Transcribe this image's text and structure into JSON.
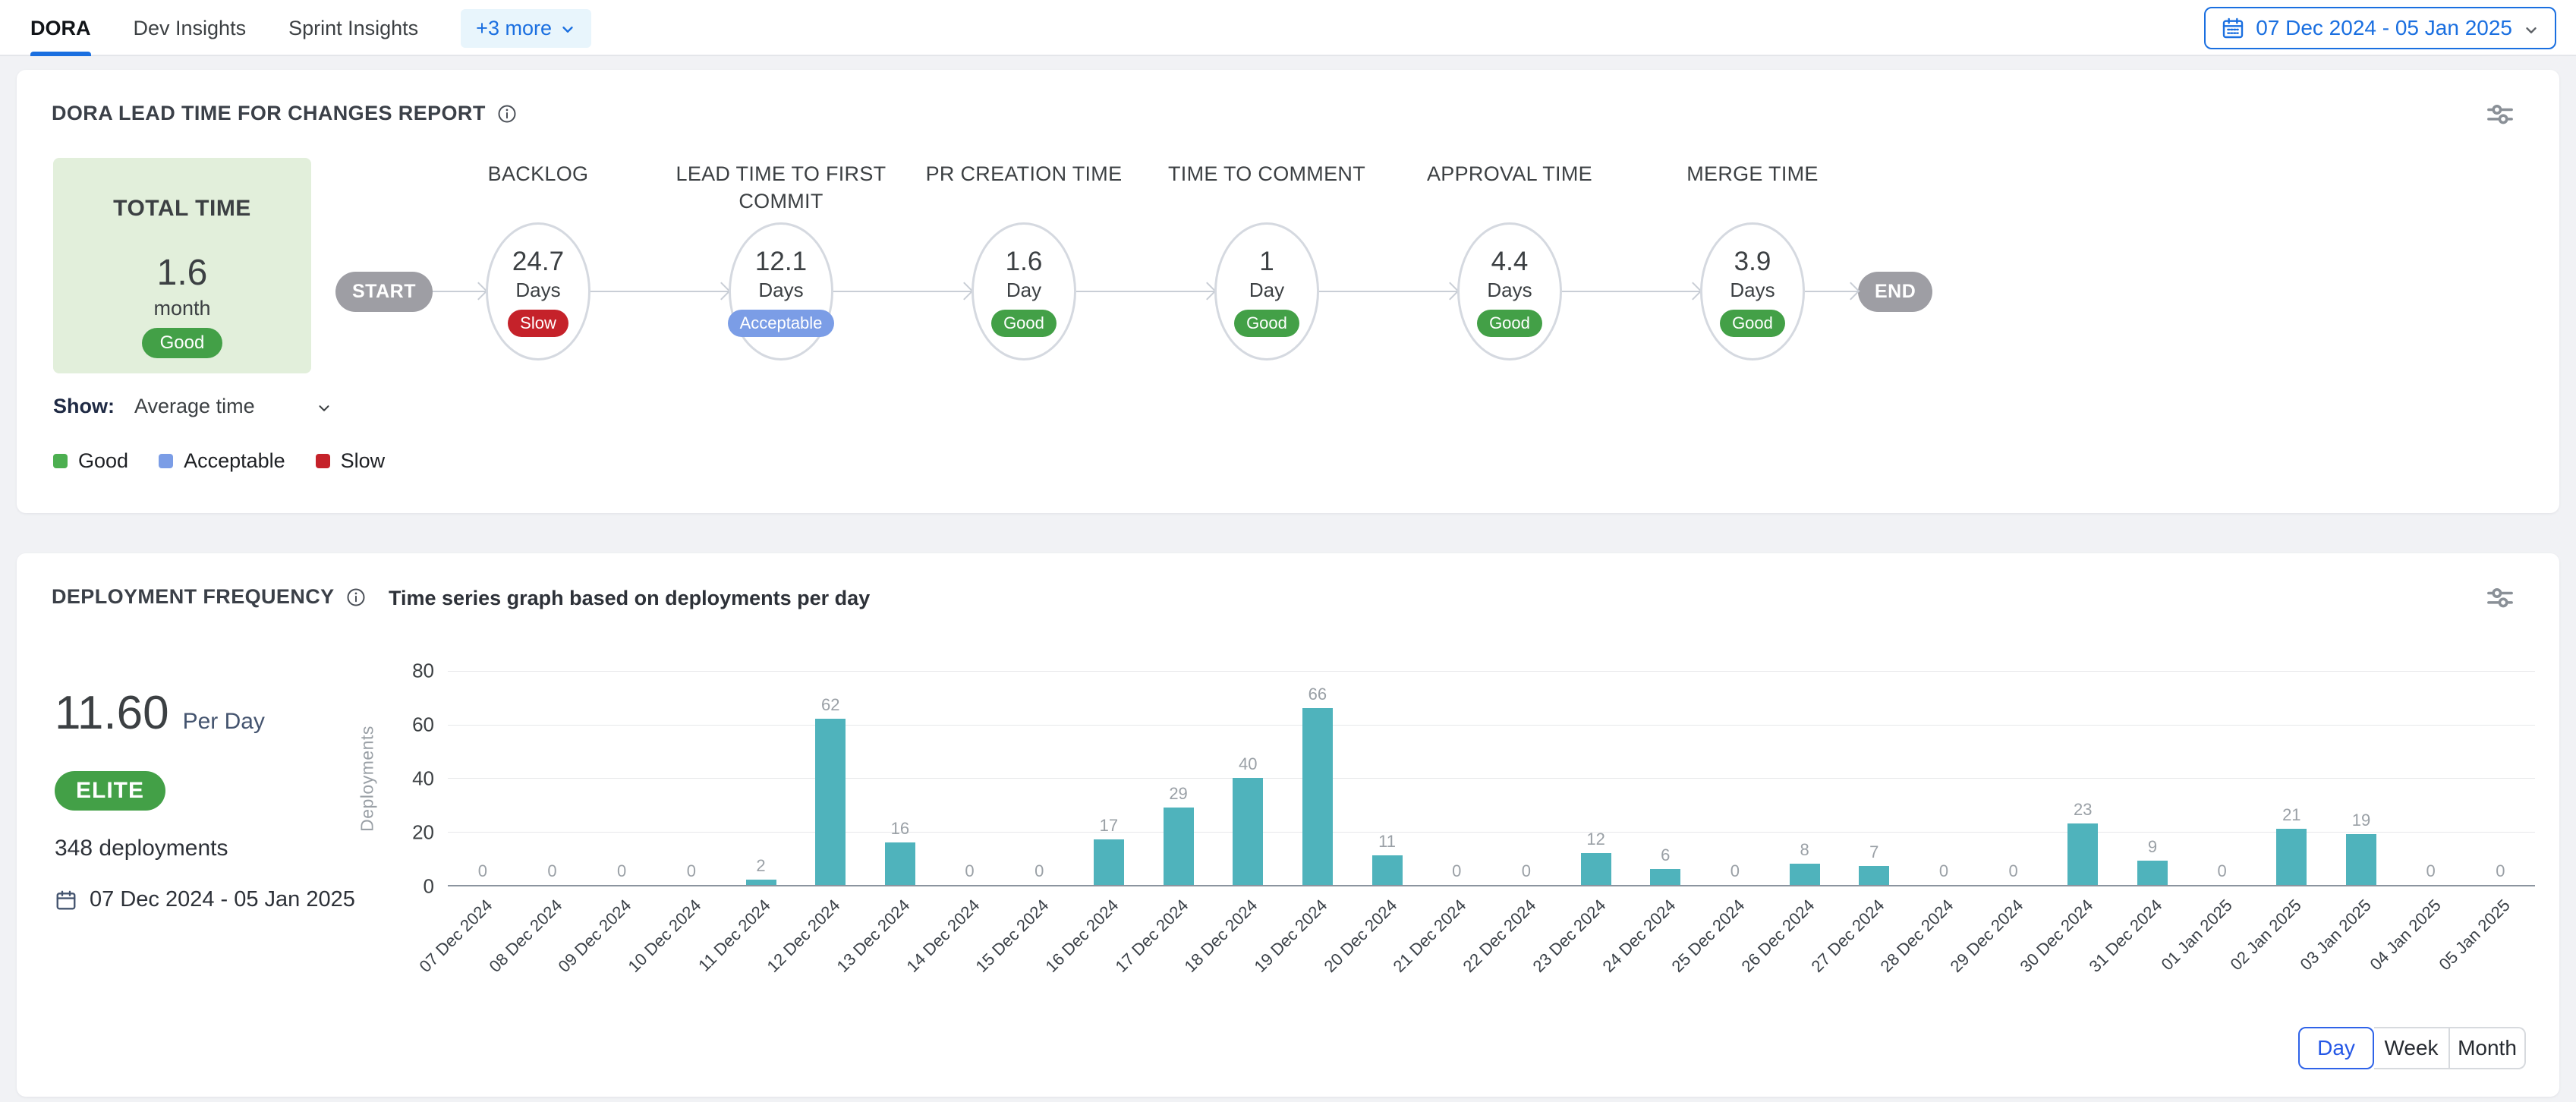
{
  "header": {
    "tabs": [
      {
        "label": "DORA",
        "active": true
      },
      {
        "label": "Dev Insights",
        "active": false
      },
      {
        "label": "Sprint Insights",
        "active": false
      }
    ],
    "more_label": "+3 more",
    "date_range": "07 Dec 2024 - 05 Jan 2025"
  },
  "lead_time_panel": {
    "title": "DORA LEAD TIME FOR CHANGES REPORT",
    "total": {
      "label": "TOTAL TIME",
      "value": "1.6",
      "unit": "month",
      "status": "Good"
    },
    "flow": {
      "start_label": "START",
      "end_label": "END",
      "stages": [
        {
          "name": "BACKLOG",
          "value": "24.7",
          "unit": "Days",
          "status": "Slow"
        },
        {
          "name": "LEAD TIME TO FIRST COMMIT",
          "value": "12.1",
          "unit": "Days",
          "status": "Acceptable"
        },
        {
          "name": "PR CREATION TIME",
          "value": "1.6",
          "unit": "Day",
          "status": "Good"
        },
        {
          "name": "TIME TO COMMENT",
          "value": "1",
          "unit": "Day",
          "status": "Good"
        },
        {
          "name": "APPROVAL TIME",
          "value": "4.4",
          "unit": "Days",
          "status": "Good"
        },
        {
          "name": "MERGE TIME",
          "value": "3.9",
          "unit": "Days",
          "status": "Good"
        }
      ]
    },
    "show": {
      "label": "Show:",
      "value": "Average time"
    },
    "legend": [
      {
        "label": "Good",
        "color": "#4caf50"
      },
      {
        "label": "Acceptable",
        "color": "#7b9de6"
      },
      {
        "label": "Slow",
        "color": "#c5222a"
      }
    ]
  },
  "deployment_panel": {
    "title": "DEPLOYMENT FREQUENCY",
    "rate_value": "11.60",
    "rate_unit": "Per Day",
    "tier": "ELITE",
    "deployments_total": "348 deployments",
    "date_range": "07 Dec 2024 - 05 Jan 2025",
    "view_options": [
      "Day",
      "Week",
      "Month"
    ],
    "active_view": "Day"
  },
  "chart_data": {
    "type": "bar",
    "title": "Time series graph based on deployments per day",
    "x": [
      "07 Dec 2024",
      "08 Dec 2024",
      "09 Dec 2024",
      "10 Dec 2024",
      "11 Dec 2024",
      "12 Dec 2024",
      "13 Dec 2024",
      "14 Dec 2024",
      "15 Dec 2024",
      "16 Dec 2024",
      "17 Dec 2024",
      "18 Dec 2024",
      "19 Dec 2024",
      "20 Dec 2024",
      "21 Dec 2024",
      "22 Dec 2024",
      "23 Dec 2024",
      "24 Dec 2024",
      "25 Dec 2024",
      "26 Dec 2024",
      "27 Dec 2024",
      "28 Dec 2024",
      "29 Dec 2024",
      "30 Dec 2024",
      "31 Dec 2024",
      "01 Jan 2025",
      "02 Jan 2025",
      "03 Jan 2025",
      "04 Jan 2025",
      "05 Jan 2025"
    ],
    "values": [
      0,
      0,
      0,
      0,
      2,
      62,
      16,
      0,
      0,
      17,
      29,
      40,
      66,
      11,
      0,
      0,
      12,
      6,
      0,
      8,
      7,
      0,
      0,
      23,
      9,
      0,
      21,
      19,
      0,
      0
    ],
    "xlabel": "",
    "ylabel": "Deployments",
    "ylim": [
      0,
      80
    ],
    "yticks": [
      0,
      20,
      40,
      60,
      80
    ],
    "grid": true,
    "value_labels": true,
    "bar_color": "#4fb3bc",
    "legend_position": "none"
  },
  "colors": {
    "accent_blue": "#1a6fe0",
    "status": {
      "Good": "#43a047",
      "Acceptable": "#7b9de6",
      "Slow": "#c5222a"
    },
    "tier_elite": "#43a047",
    "bar_teal": "#4fb3bc",
    "endpoint_gray": "#9e9ea4"
  }
}
